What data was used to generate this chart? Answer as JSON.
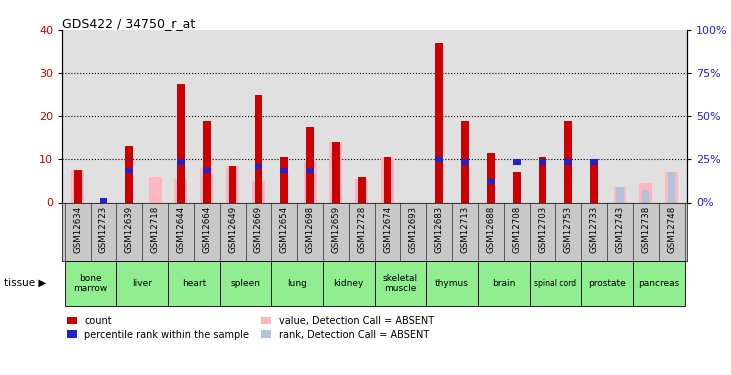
{
  "title": "GDS422 / 34750_r_at",
  "samples": [
    "GSM12634",
    "GSM12723",
    "GSM12639",
    "GSM12718",
    "GSM12644",
    "GSM12664",
    "GSM12649",
    "GSM12669",
    "GSM12654",
    "GSM12698",
    "GSM12659",
    "GSM12728",
    "GSM12674",
    "GSM12693",
    "GSM12683",
    "GSM12713",
    "GSM12688",
    "GSM12708",
    "GSM12703",
    "GSM12753",
    "GSM12733",
    "GSM12743",
    "GSM12738",
    "GSM12748"
  ],
  "tissues": [
    {
      "name": "bone\nmarrow",
      "span": [
        0,
        2
      ]
    },
    {
      "name": "liver",
      "span": [
        2,
        4
      ]
    },
    {
      "name": "heart",
      "span": [
        4,
        6
      ]
    },
    {
      "name": "spleen",
      "span": [
        6,
        8
      ]
    },
    {
      "name": "lung",
      "span": [
        8,
        10
      ]
    },
    {
      "name": "kidney",
      "span": [
        10,
        12
      ]
    },
    {
      "name": "skeletal\nmuscle",
      "span": [
        12,
        14
      ]
    },
    {
      "name": "thymus",
      "span": [
        14,
        16
      ]
    },
    {
      "name": "brain",
      "span": [
        16,
        18
      ]
    },
    {
      "name": "spinal cord",
      "span": [
        18,
        20
      ]
    },
    {
      "name": "prostate",
      "span": [
        20,
        22
      ]
    },
    {
      "name": "pancreas",
      "span": [
        22,
        24
      ]
    }
  ],
  "red_bars": [
    7.5,
    0.0,
    13.0,
    0.0,
    27.5,
    19.0,
    8.5,
    25.0,
    10.5,
    17.5,
    14.0,
    6.0,
    10.5,
    0.0,
    37.0,
    19.0,
    11.5,
    7.0,
    10.5,
    19.0,
    10.0,
    0.0,
    0.0,
    0.0
  ],
  "blue_marker": [
    0.0,
    1.0,
    8.0,
    0.0,
    10.0,
    8.0,
    0.0,
    9.0,
    8.0,
    8.0,
    0.0,
    0.0,
    0.0,
    0.0,
    10.5,
    10.0,
    5.5,
    10.0,
    10.0,
    10.0,
    10.0,
    0.0,
    0.0,
    0.0
  ],
  "pink_bars": [
    7.5,
    0.0,
    0.0,
    6.0,
    5.5,
    8.0,
    8.5,
    5.0,
    0.0,
    9.5,
    14.0,
    5.5,
    10.5,
    0.0,
    0.0,
    0.0,
    0.0,
    0.0,
    0.0,
    0.0,
    0.0,
    3.5,
    4.5,
    7.0
  ],
  "lb_bars": [
    4.5,
    0.0,
    0.0,
    0.0,
    0.0,
    0.0,
    0.0,
    0.0,
    0.0,
    0.0,
    0.0,
    0.0,
    0.0,
    0.0,
    0.0,
    0.0,
    0.0,
    0.0,
    0.0,
    0.0,
    0.0,
    3.5,
    3.0,
    7.0
  ],
  "ylim_left": [
    0,
    40
  ],
  "ylim_right": [
    0,
    100
  ],
  "yticks_left": [
    0,
    10,
    20,
    30,
    40
  ],
  "yticks_right": [
    0,
    25,
    50,
    75,
    100
  ],
  "colors": {
    "red": "#CC0000",
    "blue": "#2222CC",
    "pink": "#FFB6C1",
    "lightblue": "#B0C4DE",
    "chart_bg": "#E0E0E0",
    "xtick_bg": "#C8C8C8",
    "tissue_bg": "#90EE90"
  },
  "legend_labels": [
    "count",
    "percentile rank within the sample",
    "value, Detection Call = ABSENT",
    "rank, Detection Call = ABSENT"
  ]
}
